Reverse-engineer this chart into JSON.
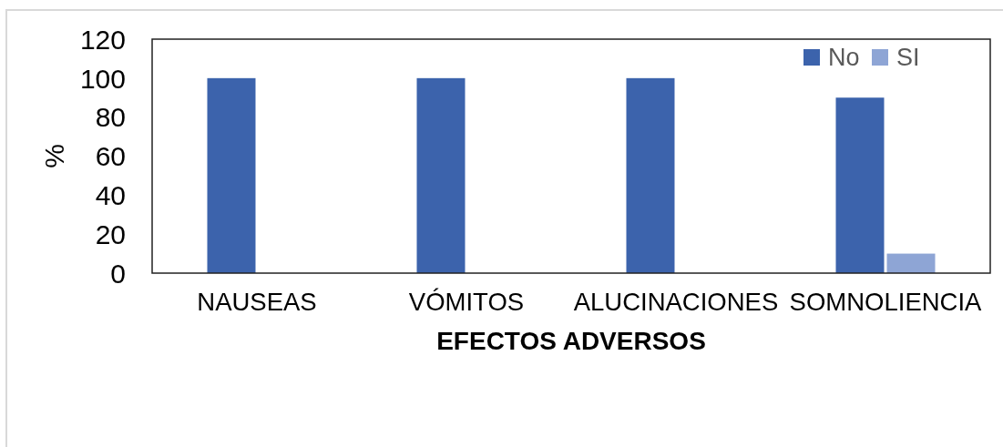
{
  "chart_data": {
    "type": "bar",
    "xlabel": "EFECTOS ADVERSOS",
    "ylabel": "%",
    "categories": [
      "NAUSEAS",
      "VÓMITOS",
      "ALUCINACIONES",
      "SOMNOLIENCIA"
    ],
    "series": [
      {
        "name": "No",
        "color": "#3c63ac",
        "values": [
          100,
          100,
          100,
          90
        ]
      },
      {
        "name": "SI",
        "color": "#8ea5d5",
        "values": [
          0,
          0,
          0,
          10
        ]
      }
    ],
    "ylim": [
      0,
      120
    ],
    "yticks": [
      0,
      20,
      40,
      60,
      80,
      100,
      120
    ],
    "legend": "top right"
  }
}
